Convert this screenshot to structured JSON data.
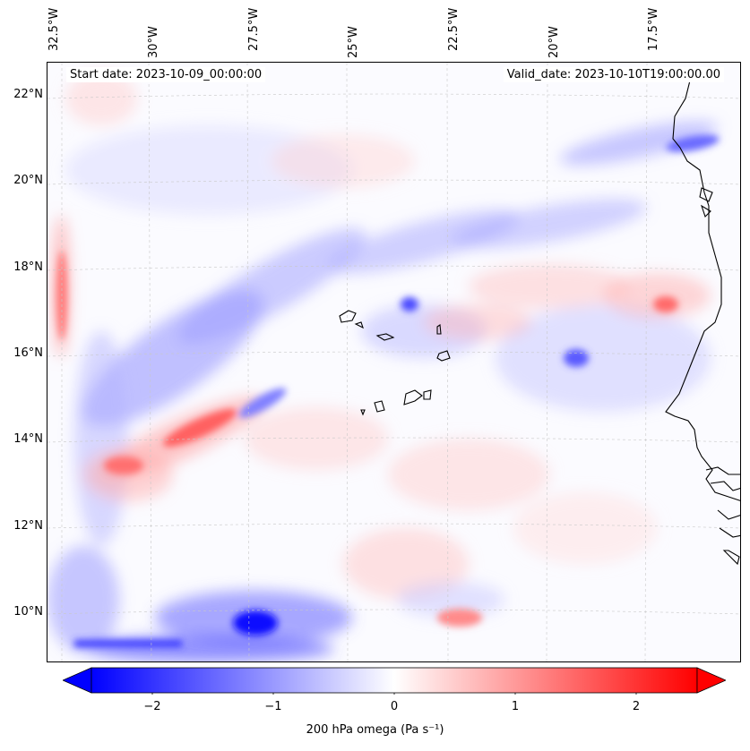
{
  "map": {
    "start_label": "Start date: 2023-10-09_00:00:00",
    "valid_label": "Valid_date: 2023-10-10T19:00:00.00",
    "latitudes": [
      "22°N",
      "20°N",
      "18°N",
      "16°N",
      "14°N",
      "12°N",
      "10°N"
    ],
    "longitudes": [
      "32.5°W",
      "30°W",
      "27.5°W",
      "25°W",
      "22.5°W",
      "20°W",
      "17.5°W"
    ],
    "colors": {
      "negative": "#0000ff",
      "neutral": "#ffffff",
      "positive": "#ff0000",
      "coast": "#000000",
      "grid": "#c8c8c8"
    }
  },
  "colorbar": {
    "ticks": [
      "−2",
      "−1",
      "0",
      "1",
      "2"
    ],
    "label": "200 hPa omega (Pa s⁻¹)",
    "range": [
      -2.5,
      2.5
    ]
  }
}
